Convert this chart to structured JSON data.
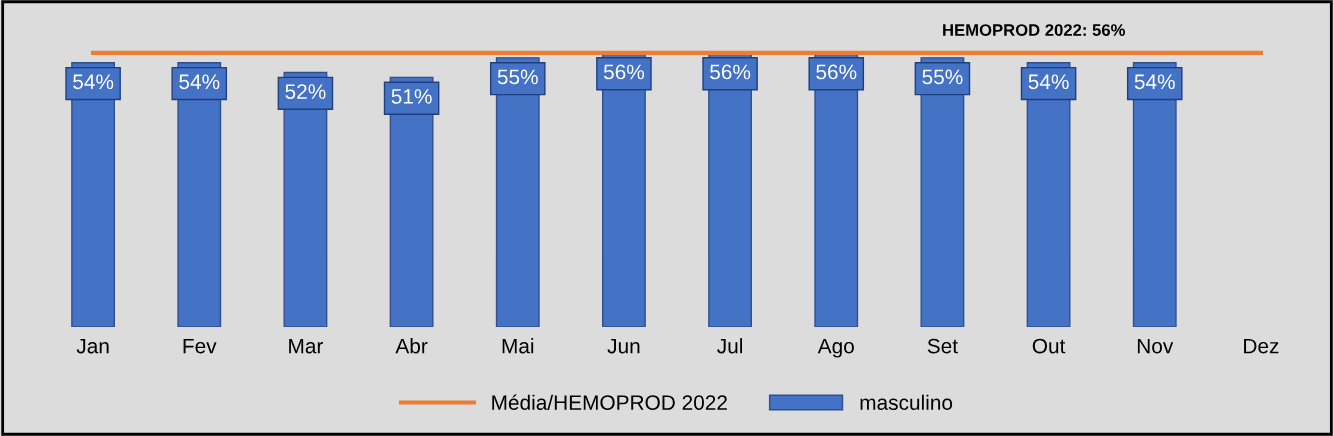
{
  "chart_data": {
    "type": "bar",
    "categories": [
      "Jan",
      "Fev",
      "Mar",
      "Abr",
      "Mai",
      "Jun",
      "Jul",
      "Ago",
      "Set",
      "Out",
      "Nov",
      "Dez"
    ],
    "series": [
      {
        "name": "masculino",
        "color": "#4472c4",
        "values": [
          54,
          54,
          52,
          51,
          55,
          56,
          56,
          56,
          55,
          54,
          54,
          null
        ],
        "value_labels": [
          "54%",
          "54%",
          "52%",
          "51%",
          "55%",
          "56%",
          "56%",
          "56%",
          "55%",
          "54%",
          "54%",
          null
        ]
      },
      {
        "name": "Média/HEMOPROD 2022",
        "type": "line",
        "color": "#ed7d31",
        "values": [
          56,
          56,
          56,
          56,
          56,
          56,
          56,
          56,
          56,
          56,
          56,
          56
        ]
      }
    ],
    "tick_labels": "x",
    "grid": false,
    "legend": "bottom",
    "annotations": [
      "HEMOPROD 2022: 56%"
    ]
  }
}
